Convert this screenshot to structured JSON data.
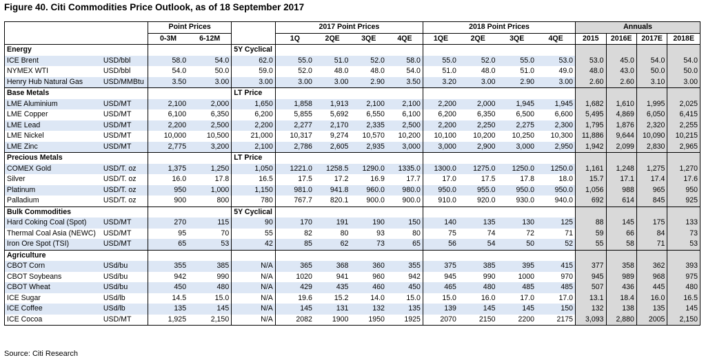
{
  "title": "Figure 40. Citi Commodities Price Outlook, as of 18 September 2017",
  "source": "Source: Citi Research",
  "headers": {
    "point_prices": "Point Prices",
    "point_prices_sub": [
      "0-3M",
      "6-12M"
    ],
    "y2017": "2017 Point Prices",
    "y2018": "2018 Point Prices",
    "quarters": [
      "1Q",
      "2QE",
      "3QE",
      "4QE"
    ],
    "quarters_2018": [
      "1QE",
      "2QE",
      "3QE",
      "4QE"
    ],
    "annuals": "Annuals",
    "annual_cols": [
      "2015",
      "2016E",
      "2017E",
      "2018E"
    ]
  },
  "sections": [
    {
      "name": "Energy",
      "sublabel": "5Y Cyclical",
      "rows": [
        {
          "name": "ICE Brent",
          "unit": "USD/bbl",
          "p03": "58.0",
          "p612": "54.0",
          "lt": "62.0",
          "q17": [
            "55.0",
            "51.0",
            "52.0",
            "58.0"
          ],
          "q18": [
            "55.0",
            "52.0",
            "55.0",
            "53.0"
          ],
          "ann": [
            "53.0",
            "45.0",
            "54.0",
            "54.0"
          ]
        },
        {
          "name": "NYMEX WTI",
          "unit": "USD/bbl",
          "p03": "54.0",
          "p612": "50.0",
          "lt": "59.0",
          "q17": [
            "52.0",
            "48.0",
            "48.0",
            "54.0"
          ],
          "q18": [
            "51.0",
            "48.0",
            "51.0",
            "49.0"
          ],
          "ann": [
            "48.0",
            "43.0",
            "50.0",
            "50.0"
          ]
        },
        {
          "name": "Henry Hub Natural Gas",
          "unit": "USD/MMBtu",
          "p03": "3.50",
          "p612": "3.00",
          "lt": "3.00",
          "q17": [
            "3.00",
            "3.00",
            "2.90",
            "3.50"
          ],
          "q18": [
            "3.20",
            "3.00",
            "2.90",
            "3.00"
          ],
          "ann": [
            "2.60",
            "2.60",
            "3.10",
            "3.00"
          ]
        }
      ]
    },
    {
      "name": "Base Metals",
      "sublabel": "LT Price",
      "rows": [
        {
          "name": "LME Aluminium",
          "unit": "USD/MT",
          "p03": "2,100",
          "p612": "2,000",
          "lt": "1,650",
          "q17": [
            "1,858",
            "1,913",
            "2,100",
            "2,100"
          ],
          "q18": [
            "2,200",
            "2,000",
            "1,945",
            "1,945"
          ],
          "ann": [
            "1,682",
            "1,610",
            "1,995",
            "2,025"
          ]
        },
        {
          "name": "LME Copper",
          "unit": "USD/MT",
          "p03": "6,100",
          "p612": "6,350",
          "lt": "6,200",
          "q17": [
            "5,855",
            "5,692",
            "6,550",
            "6,100"
          ],
          "q18": [
            "6,200",
            "6,350",
            "6,500",
            "6,600"
          ],
          "ann": [
            "5,495",
            "4,869",
            "6,050",
            "6,415"
          ]
        },
        {
          "name": "LME Lead",
          "unit": "USD/MT",
          "p03": "2,200",
          "p612": "2,500",
          "lt": "2,200",
          "q17": [
            "2,277",
            "2,170",
            "2,335",
            "2,500"
          ],
          "q18": [
            "2,200",
            "2,250",
            "2,275",
            "2,300"
          ],
          "ann": [
            "1,795",
            "1,876",
            "2,320",
            "2,255"
          ]
        },
        {
          "name": "LME Nickel",
          "unit": "USD/MT",
          "p03": "10,000",
          "p612": "10,500",
          "lt": "21,000",
          "q17": [
            "10,317",
            "9,274",
            "10,570",
            "10,200"
          ],
          "q18": [
            "10,100",
            "10,200",
            "10,250",
            "10,300"
          ],
          "ann": [
            "11,886",
            "9,644",
            "10,090",
            "10,215"
          ]
        },
        {
          "name": "LME Zinc",
          "unit": "USD/MT",
          "p03": "2,775",
          "p612": "3,200",
          "lt": "2,100",
          "q17": [
            "2,786",
            "2,605",
            "2,935",
            "3,000"
          ],
          "q18": [
            "3,000",
            "2,900",
            "3,000",
            "2,950"
          ],
          "ann": [
            "1,942",
            "2,099",
            "2,830",
            "2,965"
          ]
        }
      ]
    },
    {
      "name": "Precious Metals",
      "sublabel": "LT Price",
      "rows": [
        {
          "name": "COMEX Gold",
          "unit": "USD/T. oz",
          "p03": "1,375",
          "p612": "1,250",
          "lt": "1,050",
          "q17": [
            "1221.0",
            "1258.5",
            "1290.0",
            "1335.0"
          ],
          "q18": [
            "1300.0",
            "1275.0",
            "1250.0",
            "1250.0"
          ],
          "ann": [
            "1,161",
            "1,248",
            "1,275",
            "1,270"
          ]
        },
        {
          "name": "Silver",
          "unit": "USD/T. oz",
          "p03": "16.0",
          "p612": "17.8",
          "lt": "16.5",
          "q17": [
            "17.5",
            "17.2",
            "16.9",
            "17.7"
          ],
          "q18": [
            "17.0",
            "17.5",
            "17.8",
            "18.0"
          ],
          "ann": [
            "15.7",
            "17.1",
            "17.4",
            "17.6"
          ]
        },
        {
          "name": "Platinum",
          "unit": "USD/T. oz",
          "p03": "950",
          "p612": "1,000",
          "lt": "1,150",
          "q17": [
            "981.0",
            "941.8",
            "960.0",
            "980.0"
          ],
          "q18": [
            "950.0",
            "955.0",
            "950.0",
            "950.0"
          ],
          "ann": [
            "1,056",
            "988",
            "965",
            "950"
          ]
        },
        {
          "name": "Palladium",
          "unit": "USD/T. oz",
          "p03": "900",
          "p612": "800",
          "lt": "780",
          "q17": [
            "767.7",
            "820.1",
            "900.0",
            "900.0"
          ],
          "q18": [
            "910.0",
            "920.0",
            "930.0",
            "940.0"
          ],
          "ann": [
            "692",
            "614",
            "845",
            "925"
          ]
        }
      ]
    },
    {
      "name": "Bulk Commodities",
      "sublabel": "5Y Cyclical",
      "rows": [
        {
          "name": "Hard Coking Coal (Spot)",
          "unit": "USD/MT",
          "p03": "270",
          "p612": "115",
          "lt": "90",
          "q17": [
            "170",
            "191",
            "190",
            "150"
          ],
          "q18": [
            "140",
            "135",
            "130",
            "125"
          ],
          "ann": [
            "88",
            "145",
            "175",
            "133"
          ]
        },
        {
          "name": "Thermal Coal Asia (NEWC)",
          "unit": "USD/MT",
          "p03": "95",
          "p612": "70",
          "lt": "55",
          "q17": [
            "82",
            "80",
            "93",
            "80"
          ],
          "q18": [
            "75",
            "74",
            "72",
            "71"
          ],
          "ann": [
            "59",
            "66",
            "84",
            "73"
          ]
        },
        {
          "name": "Iron Ore Spot (TSI)",
          "unit": "USD/MT",
          "p03": "65",
          "p612": "53",
          "lt": "42",
          "q17": [
            "85",
            "62",
            "73",
            "65"
          ],
          "q18": [
            "56",
            "54",
            "50",
            "52"
          ],
          "ann": [
            "55",
            "58",
            "71",
            "53"
          ]
        }
      ]
    },
    {
      "name": "Agriculture",
      "sublabel": "",
      "rows": [
        {
          "name": "CBOT Corn",
          "unit": "USd/bu",
          "p03": "355",
          "p612": "385",
          "lt": "N/A",
          "q17": [
            "365",
            "368",
            "360",
            "355"
          ],
          "q18": [
            "375",
            "385",
            "395",
            "415"
          ],
          "ann": [
            "377",
            "358",
            "362",
            "393"
          ]
        },
        {
          "name": "CBOT Soybeans",
          "unit": "USd/bu",
          "p03": "942",
          "p612": "990",
          "lt": "N/A",
          "q17": [
            "1020",
            "941",
            "960",
            "942"
          ],
          "q18": [
            "945",
            "990",
            "1000",
            "970"
          ],
          "ann": [
            "945",
            "989",
            "968",
            "975"
          ]
        },
        {
          "name": "CBOT Wheat",
          "unit": "USd/bu",
          "p03": "450",
          "p612": "480",
          "lt": "N/A",
          "q17": [
            "429",
            "435",
            "460",
            "450"
          ],
          "q18": [
            "465",
            "480",
            "485",
            "485"
          ],
          "ann": [
            "507",
            "436",
            "445",
            "480"
          ]
        },
        {
          "name": "ICE Sugar",
          "unit": "USd/lb",
          "p03": "14.5",
          "p612": "15.0",
          "lt": "N/A",
          "q17": [
            "19.6",
            "15.2",
            "14.0",
            "15.0"
          ],
          "q18": [
            "15.0",
            "16.0",
            "17.0",
            "17.0"
          ],
          "ann": [
            "13.1",
            "18.4",
            "16.0",
            "16.5"
          ]
        },
        {
          "name": "ICE Coffee",
          "unit": "USd/lb",
          "p03": "135",
          "p612": "145",
          "lt": "N/A",
          "q17": [
            "145",
            "131",
            "132",
            "135"
          ],
          "q18": [
            "139",
            "145",
            "145",
            "150"
          ],
          "ann": [
            "132",
            "138",
            "135",
            "145"
          ]
        },
        {
          "name": "ICE Cocoa",
          "unit": "USD/MT",
          "p03": "1,925",
          "p612": "2,150",
          "lt": "N/A",
          "q17": [
            "2082",
            "1900",
            "1950",
            "1925"
          ],
          "q18": [
            "2070",
            "2150",
            "2200",
            "2175"
          ],
          "ann": [
            "3,093",
            "2,880",
            "2005",
            "2,150"
          ]
        }
      ]
    }
  ],
  "colors": {
    "row_blue": "#dde7f5",
    "annual_grey": "#d9d9d9",
    "border": "#000000"
  }
}
